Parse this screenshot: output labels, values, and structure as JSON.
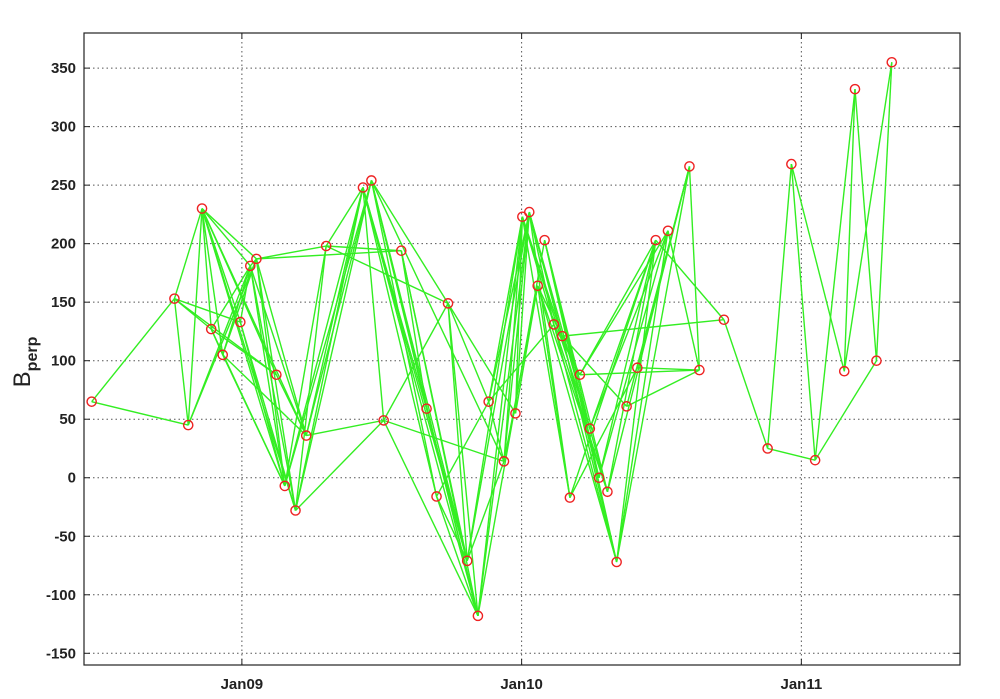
{
  "chart_data": {
    "type": "scatter",
    "title": "",
    "xlabel": "",
    "ylabel": "B",
    "ylabel_subscript": "perp",
    "xlim": [
      "2008-06-09",
      "2011-07-27"
    ],
    "ylim": [
      -160,
      380
    ],
    "grid": true,
    "x_ticks": [
      {
        "date": "2009-01-01",
        "label": "Jan09"
      },
      {
        "date": "2010-01-01",
        "label": "Jan10"
      },
      {
        "date": "2011-01-01",
        "label": "Jan11"
      }
    ],
    "y_ticks": [
      -150,
      -100,
      -50,
      0,
      50,
      100,
      150,
      200,
      250,
      300,
      350
    ],
    "colors": {
      "edges": "#33ee22",
      "points": "#ee2222"
    },
    "points": [
      {
        "x": "2008-06-19",
        "y": 65
      },
      {
        "x": "2008-10-05",
        "y": 153
      },
      {
        "x": "2008-10-23",
        "y": 45
      },
      {
        "x": "2008-11-10",
        "y": 230
      },
      {
        "x": "2008-11-22",
        "y": 127
      },
      {
        "x": "2008-12-07",
        "y": 105
      },
      {
        "x": "2008-12-30",
        "y": 133
      },
      {
        "x": "2009-01-12",
        "y": 181
      },
      {
        "x": "2009-01-20",
        "y": 187
      },
      {
        "x": "2009-02-15",
        "y": 88
      },
      {
        "x": "2009-02-26",
        "y": -7
      },
      {
        "x": "2009-03-12",
        "y": -28
      },
      {
        "x": "2009-03-26",
        "y": 36
      },
      {
        "x": "2009-04-21",
        "y": 198
      },
      {
        "x": "2009-06-08",
        "y": 248
      },
      {
        "x": "2009-06-19",
        "y": 254
      },
      {
        "x": "2009-07-05",
        "y": 49
      },
      {
        "x": "2009-07-28",
        "y": 194
      },
      {
        "x": "2009-08-30",
        "y": 59
      },
      {
        "x": "2009-09-12",
        "y": -16
      },
      {
        "x": "2009-09-27",
        "y": 149
      },
      {
        "x": "2009-10-22",
        "y": -71
      },
      {
        "x": "2009-11-05",
        "y": -118
      },
      {
        "x": "2009-11-19",
        "y": 65
      },
      {
        "x": "2009-12-09",
        "y": 14
      },
      {
        "x": "2009-12-24",
        "y": 55
      },
      {
        "x": "2010-01-02",
        "y": 223
      },
      {
        "x": "2010-01-11",
        "y": 227
      },
      {
        "x": "2010-01-22",
        "y": 164
      },
      {
        "x": "2010-01-31",
        "y": 203
      },
      {
        "x": "2010-02-12",
        "y": 131
      },
      {
        "x": "2010-02-23",
        "y": 121
      },
      {
        "x": "2010-03-05",
        "y": -17
      },
      {
        "x": "2010-03-18",
        "y": 88
      },
      {
        "x": "2010-03-31",
        "y": 42
      },
      {
        "x": "2010-04-12",
        "y": 0
      },
      {
        "x": "2010-04-23",
        "y": -12
      },
      {
        "x": "2010-05-05",
        "y": -72
      },
      {
        "x": "2010-05-18",
        "y": 61
      },
      {
        "x": "2010-06-01",
        "y": 94
      },
      {
        "x": "2010-06-25",
        "y": 203
      },
      {
        "x": "2010-07-11",
        "y": 211
      },
      {
        "x": "2010-08-08",
        "y": 266
      },
      {
        "x": "2010-08-21",
        "y": 92
      },
      {
        "x": "2010-09-22",
        "y": 135
      },
      {
        "x": "2010-11-18",
        "y": 25
      },
      {
        "x": "2010-12-19",
        "y": 268
      },
      {
        "x": "2011-01-19",
        "y": 15
      },
      {
        "x": "2011-02-26",
        "y": 91
      },
      {
        "x": "2011-03-12",
        "y": 332
      },
      {
        "x": "2011-04-09",
        "y": 100
      },
      {
        "x": "2011-04-29",
        "y": 355
      }
    ],
    "pairs": [
      [
        0,
        1
      ],
      [
        0,
        2
      ],
      [
        1,
        2
      ],
      [
        1,
        3
      ],
      [
        1,
        4
      ],
      [
        1,
        6
      ],
      [
        1,
        9
      ],
      [
        2,
        3
      ],
      [
        2,
        7
      ],
      [
        2,
        8
      ],
      [
        3,
        4
      ],
      [
        3,
        5
      ],
      [
        3,
        6
      ],
      [
        3,
        7
      ],
      [
        3,
        8
      ],
      [
        3,
        9
      ],
      [
        3,
        10
      ],
      [
        3,
        11
      ],
      [
        3,
        12
      ],
      [
        4,
        5
      ],
      [
        4,
        7
      ],
      [
        4,
        9
      ],
      [
        4,
        10
      ],
      [
        5,
        7
      ],
      [
        5,
        8
      ],
      [
        5,
        10
      ],
      [
        5,
        12
      ],
      [
        6,
        7
      ],
      [
        6,
        10
      ],
      [
        6,
        11
      ],
      [
        7,
        8
      ],
      [
        7,
        10
      ],
      [
        7,
        11
      ],
      [
        7,
        12
      ],
      [
        8,
        10
      ],
      [
        8,
        11
      ],
      [
        8,
        12
      ],
      [
        8,
        13
      ],
      [
        8,
        17
      ],
      [
        9,
        12
      ],
      [
        10,
        13
      ],
      [
        10,
        14
      ],
      [
        10,
        15
      ],
      [
        11,
        13
      ],
      [
        11,
        14
      ],
      [
        11,
        15
      ],
      [
        12,
        14
      ],
      [
        12,
        15
      ],
      [
        12,
        16
      ],
      [
        13,
        14
      ],
      [
        13,
        17
      ],
      [
        13,
        20
      ],
      [
        14,
        16
      ],
      [
        14,
        18
      ],
      [
        14,
        19
      ],
      [
        14,
        21
      ],
      [
        14,
        22
      ],
      [
        15,
        18
      ],
      [
        15,
        19
      ],
      [
        15,
        20
      ],
      [
        15,
        21
      ],
      [
        15,
        22
      ],
      [
        15,
        24
      ],
      [
        16,
        20
      ],
      [
        16,
        22
      ],
      [
        17,
        18
      ],
      [
        17,
        21
      ],
      [
        17,
        22
      ],
      [
        18,
        21
      ],
      [
        18,
        22
      ],
      [
        19,
        21
      ],
      [
        19,
        22
      ],
      [
        19,
        23
      ],
      [
        20,
        21
      ],
      [
        20,
        22
      ],
      [
        20,
        23
      ],
      [
        20,
        25
      ],
      [
        21,
        26
      ],
      [
        21,
        27
      ],
      [
        22,
        26
      ],
      [
        22,
        27
      ],
      [
        22,
        29
      ],
      [
        23,
        24
      ],
      [
        23,
        26
      ],
      [
        23,
        27
      ],
      [
        23,
        30
      ],
      [
        24,
        26
      ],
      [
        24,
        27
      ],
      [
        24,
        28
      ],
      [
        25,
        26
      ],
      [
        25,
        27
      ],
      [
        25,
        28
      ],
      [
        26,
        30
      ],
      [
        26,
        31
      ],
      [
        26,
        32
      ],
      [
        26,
        34
      ],
      [
        27,
        30
      ],
      [
        27,
        31
      ],
      [
        27,
        32
      ],
      [
        27,
        35
      ],
      [
        27,
        36
      ],
      [
        28,
        32
      ],
      [
        28,
        33
      ],
      [
        28,
        37
      ],
      [
        29,
        34
      ],
      [
        29,
        35
      ],
      [
        29,
        36
      ],
      [
        29,
        37
      ],
      [
        30,
        36
      ],
      [
        30,
        37
      ],
      [
        31,
        37
      ],
      [
        31,
        38
      ],
      [
        32,
        39
      ],
      [
        32,
        40
      ],
      [
        33,
        40
      ],
      [
        33,
        41
      ],
      [
        34,
        40
      ],
      [
        34,
        41
      ],
      [
        35,
        40
      ],
      [
        35,
        41
      ],
      [
        36,
        40
      ],
      [
        36,
        42
      ],
      [
        37,
        40
      ],
      [
        37,
        41
      ],
      [
        37,
        42
      ],
      [
        38,
        42
      ],
      [
        38,
        43
      ],
      [
        39,
        42
      ],
      [
        39,
        43
      ],
      [
        40,
        44
      ],
      [
        41,
        43
      ],
      [
        42,
        43
      ],
      [
        44,
        45
      ],
      [
        45,
        46
      ],
      [
        45,
        47
      ],
      [
        46,
        47
      ],
      [
        46,
        48
      ],
      [
        47,
        49
      ],
      [
        47,
        50
      ],
      [
        48,
        49
      ],
      [
        48,
        51
      ],
      [
        49,
        50
      ],
      [
        50,
        51
      ],
      [
        21,
        24
      ],
      [
        16,
        24
      ],
      [
        11,
        16
      ],
      [
        28,
        36
      ],
      [
        33,
        43
      ],
      [
        31,
        44
      ],
      [
        30,
        33
      ]
    ]
  }
}
